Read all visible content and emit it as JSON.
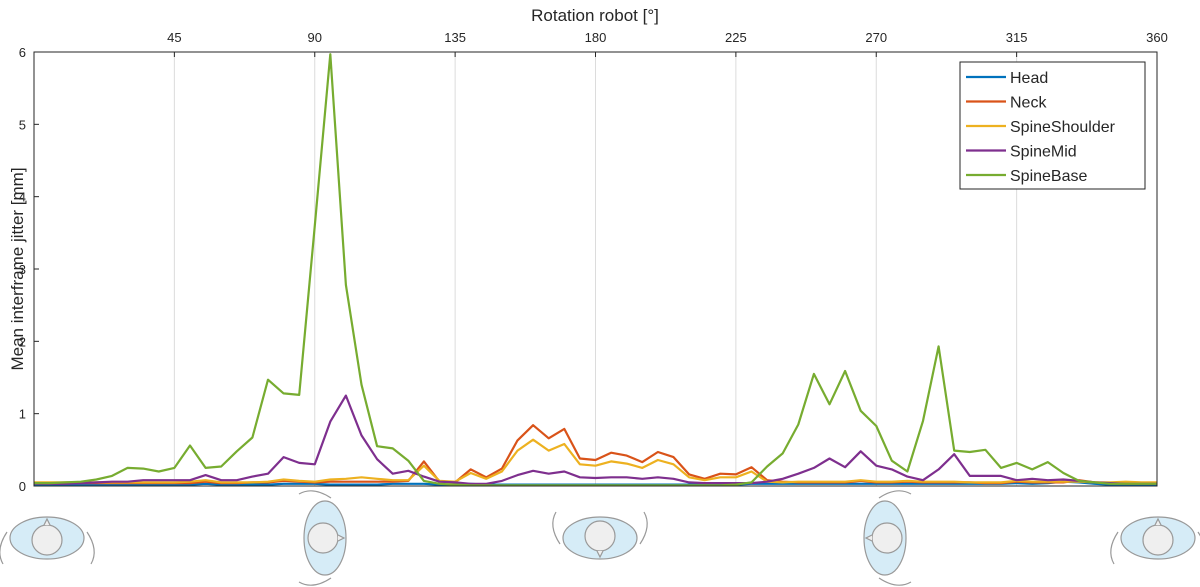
{
  "chart_data": {
    "type": "line",
    "xlabel": "Rotation robot [°]",
    "ylabel": "Mean interframe jitter [mm]",
    "xlim": [
      0,
      360
    ],
    "ylim": [
      0,
      6
    ],
    "x_ticks": [
      "45",
      "90",
      "135",
      "180",
      "225",
      "270",
      "315",
      "360"
    ],
    "y_ticks": [
      "0",
      "1",
      "2",
      "3",
      "4",
      "5",
      "6"
    ],
    "grid": "vertical",
    "legend_position": "top-right",
    "x": [
      0,
      5,
      10,
      15,
      20,
      25,
      30,
      35,
      40,
      45,
      50,
      55,
      60,
      65,
      70,
      75,
      80,
      85,
      90,
      95,
      100,
      105,
      110,
      115,
      120,
      125,
      130,
      135,
      140,
      145,
      150,
      155,
      160,
      165,
      170,
      175,
      180,
      185,
      190,
      195,
      200,
      205,
      210,
      215,
      220,
      225,
      230,
      235,
      240,
      245,
      250,
      255,
      260,
      265,
      270,
      275,
      280,
      285,
      290,
      295,
      300,
      305,
      310,
      315,
      320,
      325,
      330,
      335,
      340,
      345,
      350,
      355,
      360
    ],
    "series": [
      {
        "name": "Head",
        "color": "#0072BD",
        "values": [
          0.02,
          0.02,
          0.02,
          0.02,
          0.02,
          0.02,
          0.02,
          0.02,
          0.02,
          0.02,
          0.02,
          0.03,
          0.02,
          0.02,
          0.02,
          0.02,
          0.03,
          0.03,
          0.03,
          0.02,
          0.02,
          0.02,
          0.02,
          0.03,
          0.03,
          0.03,
          0.02,
          0.02,
          0.03,
          0.02,
          0.02,
          0.02,
          0.02,
          0.02,
          0.02,
          0.02,
          0.02,
          0.02,
          0.02,
          0.02,
          0.02,
          0.02,
          0.02,
          0.02,
          0.02,
          0.02,
          0.03,
          0.03,
          0.03,
          0.03,
          0.03,
          0.03,
          0.03,
          0.03,
          0.03,
          0.03,
          0.03,
          0.03,
          0.03,
          0.03,
          0.03,
          0.03,
          0.03,
          0.04,
          0.03,
          0.04,
          0.06,
          0.05,
          0.03,
          0.02,
          0.02,
          0.02,
          0.02
        ]
      },
      {
        "name": "Neck",
        "color": "#D95319",
        "values": [
          0.04,
          0.04,
          0.04,
          0.04,
          0.04,
          0.04,
          0.04,
          0.04,
          0.04,
          0.04,
          0.04,
          0.06,
          0.04,
          0.04,
          0.05,
          0.05,
          0.07,
          0.06,
          0.05,
          0.06,
          0.06,
          0.06,
          0.06,
          0.06,
          0.07,
          0.34,
          0.06,
          0.05,
          0.23,
          0.12,
          0.24,
          0.63,
          0.84,
          0.66,
          0.79,
          0.38,
          0.36,
          0.46,
          0.42,
          0.33,
          0.47,
          0.4,
          0.16,
          0.1,
          0.17,
          0.16,
          0.26,
          0.08,
          0.06,
          0.05,
          0.05,
          0.05,
          0.05,
          0.07,
          0.05,
          0.05,
          0.06,
          0.05,
          0.05,
          0.05,
          0.05,
          0.04,
          0.04,
          0.06,
          0.05,
          0.05,
          0.05,
          0.08,
          0.05,
          0.04,
          0.04,
          0.04,
          0.04
        ]
      },
      {
        "name": "SpineShoulder",
        "color": "#EDB120",
        "values": [
          0.05,
          0.05,
          0.05,
          0.05,
          0.05,
          0.05,
          0.05,
          0.05,
          0.05,
          0.05,
          0.06,
          0.08,
          0.05,
          0.05,
          0.05,
          0.06,
          0.09,
          0.07,
          0.06,
          0.09,
          0.1,
          0.12,
          0.1,
          0.08,
          0.08,
          0.28,
          0.07,
          0.06,
          0.18,
          0.1,
          0.2,
          0.49,
          0.64,
          0.49,
          0.58,
          0.3,
          0.28,
          0.34,
          0.31,
          0.25,
          0.36,
          0.3,
          0.12,
          0.08,
          0.12,
          0.12,
          0.2,
          0.06,
          0.05,
          0.06,
          0.06,
          0.06,
          0.06,
          0.08,
          0.06,
          0.06,
          0.07,
          0.06,
          0.06,
          0.06,
          0.05,
          0.05,
          0.05,
          0.07,
          0.06,
          0.06,
          0.06,
          0.06,
          0.05,
          0.05,
          0.06,
          0.05,
          0.05
        ]
      },
      {
        "name": "SpineMid",
        "color": "#7E2F8E",
        "values": [
          0.03,
          0.03,
          0.03,
          0.04,
          0.05,
          0.06,
          0.06,
          0.08,
          0.08,
          0.08,
          0.08,
          0.15,
          0.08,
          0.08,
          0.13,
          0.17,
          0.4,
          0.32,
          0.3,
          0.89,
          1.25,
          0.7,
          0.37,
          0.17,
          0.21,
          0.13,
          0.06,
          0.05,
          0.03,
          0.03,
          0.07,
          0.15,
          0.21,
          0.17,
          0.2,
          0.12,
          0.11,
          0.12,
          0.12,
          0.1,
          0.12,
          0.1,
          0.05,
          0.04,
          0.04,
          0.04,
          0.04,
          0.06,
          0.1,
          0.17,
          0.25,
          0.38,
          0.26,
          0.48,
          0.28,
          0.23,
          0.13,
          0.08,
          0.23,
          0.44,
          0.14,
          0.14,
          0.14,
          0.08,
          0.1,
          0.08,
          0.09,
          0.07,
          0.05,
          0.04,
          0.03,
          0.03,
          0.03
        ]
      },
      {
        "name": "SpineBase",
        "color": "#77AC30",
        "values": [
          0.04,
          0.04,
          0.05,
          0.06,
          0.09,
          0.14,
          0.25,
          0.24,
          0.2,
          0.25,
          0.56,
          0.25,
          0.27,
          0.48,
          0.67,
          1.47,
          1.28,
          1.26,
          3.6,
          5.97,
          2.78,
          1.4,
          0.55,
          0.52,
          0.35,
          0.07,
          0.03,
          0.02,
          0.01,
          0.01,
          0.01,
          0.01,
          0.01,
          0.01,
          0.01,
          0.01,
          0.01,
          0.01,
          0.01,
          0.01,
          0.01,
          0.01,
          0.01,
          0.01,
          0.01,
          0.02,
          0.05,
          0.27,
          0.45,
          0.85,
          1.55,
          1.13,
          1.59,
          1.04,
          0.83,
          0.35,
          0.2,
          0.9,
          1.93,
          0.49,
          0.47,
          0.5,
          0.25,
          0.32,
          0.23,
          0.33,
          0.18,
          0.07,
          0.05,
          0.03,
          0.03,
          0.03,
          0.03
        ]
      }
    ]
  }
}
